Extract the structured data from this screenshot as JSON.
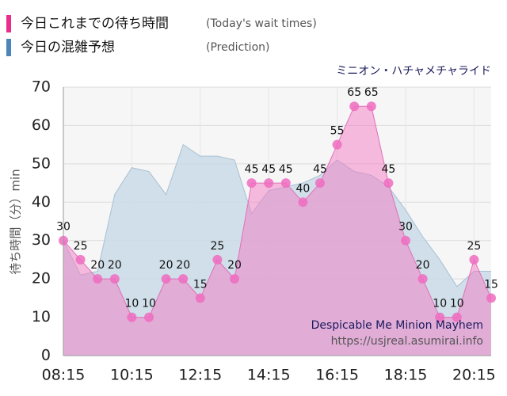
{
  "chart_data": {
    "type": "area",
    "subtitle": "ミニオン・ハチャメチャライド",
    "y_label": "待ち時間（分）min",
    "annotations": [
      "Despicable Me Minion Mayhem",
      "https://usjreal.asumirai.info"
    ],
    "categories": [
      "08:15",
      null,
      null,
      null,
      "10:15",
      null,
      null,
      null,
      "12:15",
      null,
      null,
      null,
      "14:15",
      null,
      null,
      null,
      "16:15",
      null,
      null,
      null,
      "18:15",
      null,
      null,
      null,
      "20:15",
      null
    ],
    "series": [
      {
        "name": "今日これまでの待ち時間",
        "note": "(Today's wait times)",
        "color": "#e8308a",
        "fill": "#f27cc4",
        "marker": "#ee6cbf",
        "values": [
          30,
          25,
          20,
          20,
          10,
          10,
          20,
          20,
          15,
          25,
          20,
          45,
          45,
          45,
          40,
          45,
          55,
          65,
          65,
          45,
          30,
          20,
          10,
          10,
          25,
          15
        ]
      },
      {
        "name": "今日の混雑予想",
        "note": "(Prediction)",
        "color": "#4a86b8",
        "fill": "#c9dbe6",
        "values": [
          30,
          21,
          22,
          42,
          49,
          48,
          42,
          55,
          52,
          52,
          51,
          37,
          43,
          44,
          45,
          47,
          51,
          48,
          47,
          44,
          38,
          31,
          25,
          18,
          22,
          22
        ]
      }
    ],
    "ylim": [
      0,
      70
    ],
    "yticks": [
      0,
      10,
      20,
      30,
      40,
      50,
      60,
      70
    ],
    "grid": true
  }
}
